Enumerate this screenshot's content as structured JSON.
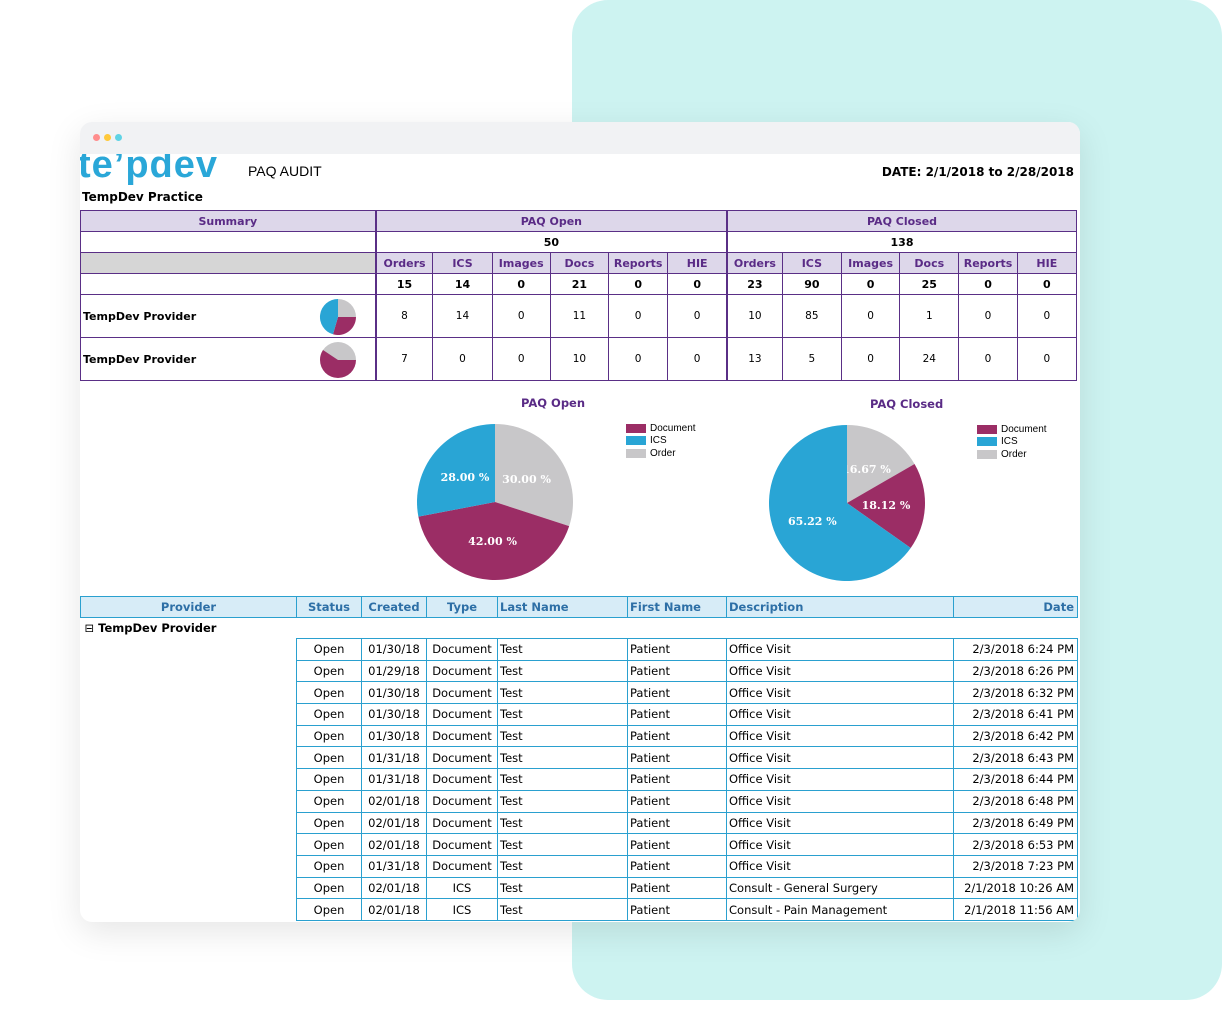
{
  "logo_text": "te’pdev",
  "report": {
    "title": "PAQ AUDIT",
    "date_range": "DATE: 2/1/2018 to 2/28/2018",
    "practice": "TempDev Practice"
  },
  "summary": {
    "summary_label": "Summary",
    "open_label": "PAQ Open",
    "closed_label": "PAQ Closed",
    "open_total": "50",
    "closed_total": "138",
    "columns": [
      "Orders",
      "ICS",
      "Images",
      "Docs",
      "Reports",
      "HIE"
    ],
    "open_totals": [
      "15",
      "14",
      "0",
      "21",
      "0",
      "0"
    ],
    "closed_totals": [
      "23",
      "90",
      "0",
      "25",
      "0",
      "0"
    ],
    "providers": [
      {
        "name": "TempDev Provider",
        "open": [
          "8",
          "14",
          "0",
          "11",
          "0",
          "0"
        ],
        "closed": [
          "10",
          "85",
          "0",
          "1",
          "0",
          "0"
        ]
      },
      {
        "name": "TempDev Provider",
        "open": [
          "7",
          "0",
          "0",
          "10",
          "0",
          "0"
        ],
        "closed": [
          "13",
          "5",
          "0",
          "24",
          "0",
          "0"
        ]
      }
    ]
  },
  "colors": {
    "document": "#9b2d65",
    "ics": "#29a5d5",
    "order": "#c8c7c9",
    "purple": "#5a2b86",
    "teal_bg": "#cdf3f1"
  },
  "chart_data": [
    {
      "type": "pie",
      "title": "PAQ Open",
      "legend": [
        "Document",
        "ICS",
        "Order"
      ],
      "slices": [
        {
          "label": "Document",
          "value": 42.0,
          "text": "42.00 %"
        },
        {
          "label": "ICS",
          "value": 28.0,
          "text": "28.00 %"
        },
        {
          "label": "Order",
          "value": 30.0,
          "text": "30.00 %"
        }
      ]
    },
    {
      "type": "pie",
      "title": "PAQ Closed",
      "legend": [
        "Document",
        "ICS",
        "Order"
      ],
      "slices": [
        {
          "label": "Document",
          "value": 18.12,
          "text": "18.12 %"
        },
        {
          "label": "ICS",
          "value": 65.22,
          "text": "65.22 %"
        },
        {
          "label": "Order",
          "value": 16.67,
          "text": "16.67 %"
        }
      ]
    }
  ],
  "detail": {
    "columns": [
      "Provider",
      "Status",
      "Created",
      "Type",
      "Last Name",
      "First Name",
      "Description",
      "Date"
    ],
    "group_label": "TempDev Provider",
    "group_toggle": "⊟",
    "rows": [
      [
        "Open",
        "01/30/18",
        "Document",
        "Test",
        "Patient",
        "Office Visit",
        "2/3/2018 6:24 PM"
      ],
      [
        "Open",
        "01/29/18",
        "Document",
        "Test",
        "Patient",
        "Office Visit",
        "2/3/2018 6:26 PM"
      ],
      [
        "Open",
        "01/30/18",
        "Document",
        "Test",
        "Patient",
        "Office Visit",
        "2/3/2018 6:32 PM"
      ],
      [
        "Open",
        "01/30/18",
        "Document",
        "Test",
        "Patient",
        "Office Visit",
        "2/3/2018 6:41 PM"
      ],
      [
        "Open",
        "01/30/18",
        "Document",
        "Test",
        "Patient",
        "Office Visit",
        "2/3/2018 6:42 PM"
      ],
      [
        "Open",
        "01/31/18",
        "Document",
        "Test",
        "Patient",
        "Office Visit",
        "2/3/2018 6:43 PM"
      ],
      [
        "Open",
        "01/31/18",
        "Document",
        "Test",
        "Patient",
        "Office Visit",
        "2/3/2018 6:44 PM"
      ],
      [
        "Open",
        "02/01/18",
        "Document",
        "Test",
        "Patient",
        "Office Visit",
        "2/3/2018 6:48 PM"
      ],
      [
        "Open",
        "02/01/18",
        "Document",
        "Test",
        "Patient",
        "Office Visit",
        "2/3/2018 6:49 PM"
      ],
      [
        "Open",
        "02/01/18",
        "Document",
        "Test",
        "Patient",
        "Office Visit",
        "2/3/2018 6:53 PM"
      ],
      [
        "Open",
        "01/31/18",
        "Document",
        "Test",
        "Patient",
        "Office Visit",
        "2/3/2018 7:23 PM"
      ],
      [
        "Open",
        "02/01/18",
        "ICS",
        "Test",
        "Patient",
        "Consult - General Surgery",
        "2/1/2018 10:26 AM"
      ],
      [
        "Open",
        "02/01/18",
        "ICS",
        "Test",
        "Patient",
        "Consult - Pain Management",
        "2/1/2018 11:56 AM"
      ]
    ]
  }
}
